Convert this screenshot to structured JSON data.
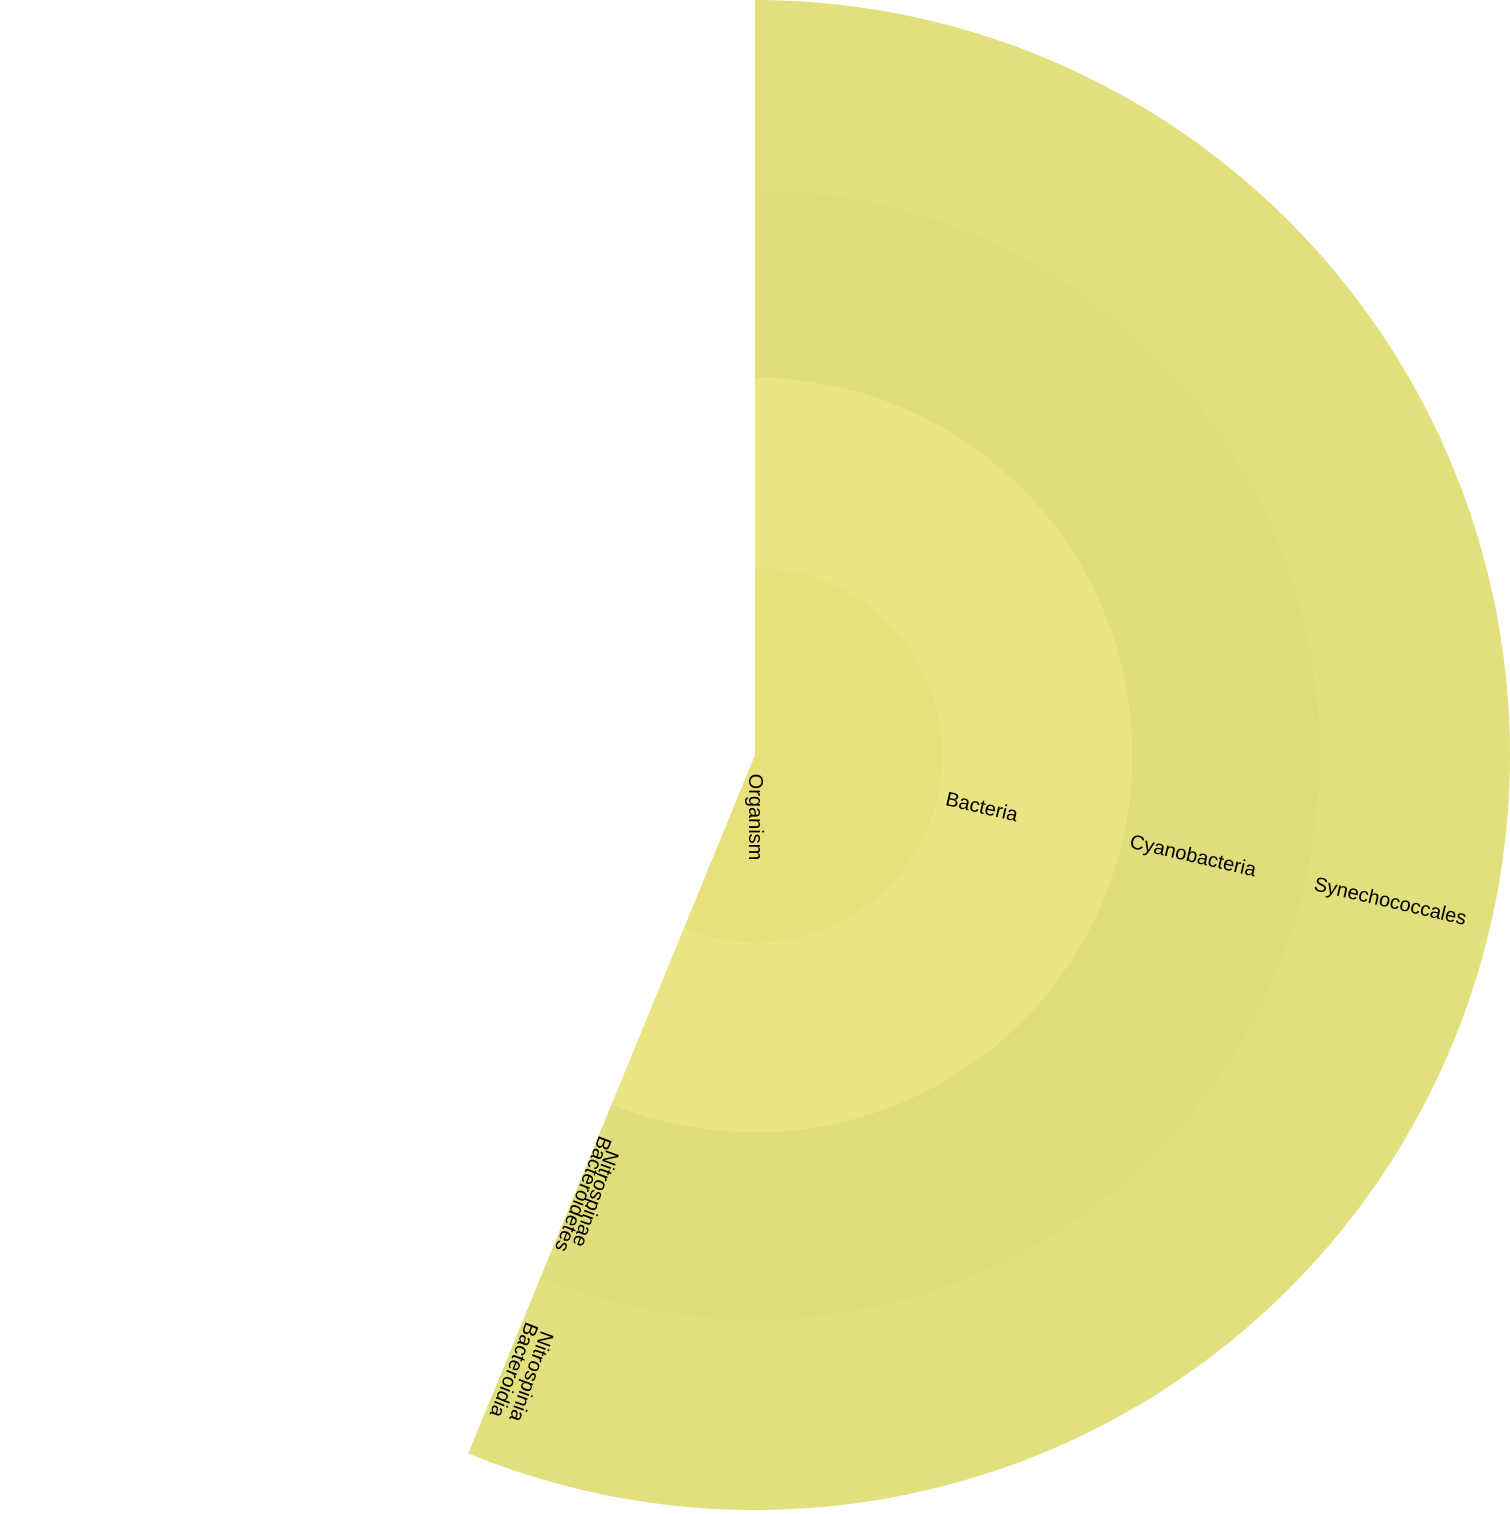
{
  "chart_data": {
    "type": "sunburst",
    "title": "",
    "root": {
      "name": "Organism",
      "children": [
        {
          "name": "Bacteria",
          "children": [
            {
              "name": "Cyanobacteria",
              "children": [
                {
                  "name": "Synechococcales",
                  "value": 0.553
                }
              ]
            },
            {
              "name": "Nitrospinae",
              "children": [
                {
                  "name": "Nitrospinia",
                  "value": 0.008
                }
              ]
            },
            {
              "name": "Bacteroidetes",
              "children": [
                {
                  "name": "Bacteroidia",
                  "value": 0.001
                }
              ]
            }
          ]
        }
      ]
    },
    "colors": {
      "Organism": "#e8e07a",
      "Bacteria": "#eae483",
      "Cyanobacteria": "#e0de7a",
      "Nitrospinae": "#e0de7a",
      "Bacteroidetes": "#e0de7a",
      "Synechococcales": "#e2df7d",
      "Nitrospinia": "#e2df7d",
      "Bacteroidia": "#e2df7d"
    }
  }
}
